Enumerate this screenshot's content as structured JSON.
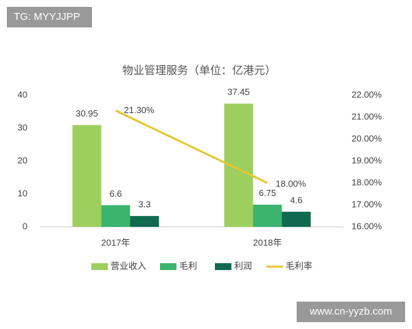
{
  "watermark": "TG: MYYJJPP",
  "source_watermark": "www.cn-yyzb.com",
  "chart_data": {
    "type": "bar",
    "title": "物业管理服务（单位：亿港元）",
    "categories": [
      "2017年",
      "2018年"
    ],
    "series": [
      {
        "name": "营业收入",
        "color": "#9ccf5e",
        "values": [
          30.95,
          37.45
        ]
      },
      {
        "name": "毛利",
        "color": "#3cb46e",
        "values": [
          6.6,
          6.75
        ]
      },
      {
        "name": "利润",
        "color": "#0f6a50",
        "values": [
          3.3,
          4.6
        ]
      },
      {
        "name": "毛利率",
        "type": "line",
        "axis": "y2",
        "color": "#e6c532",
        "values": [
          21.3,
          18.0
        ],
        "value_labels": [
          "21.30%",
          "18.00%"
        ]
      }
    ],
    "ylim": [
      0,
      40
    ],
    "yticks": [
      0,
      10,
      20,
      30,
      40
    ],
    "y2lim": [
      16,
      22
    ],
    "y2ticks": [
      {
        "value": 16,
        "label": "16.00%"
      },
      {
        "value": 17,
        "label": "17.00%"
      },
      {
        "value": 18,
        "label": "18.00%"
      },
      {
        "value": 19,
        "label": "19.00%"
      },
      {
        "value": 20,
        "label": "20.00%"
      },
      {
        "value": 21,
        "label": "21.00%"
      },
      {
        "value": 22,
        "label": "22.00%"
      }
    ],
    "grid": false,
    "legend": "bottom"
  }
}
